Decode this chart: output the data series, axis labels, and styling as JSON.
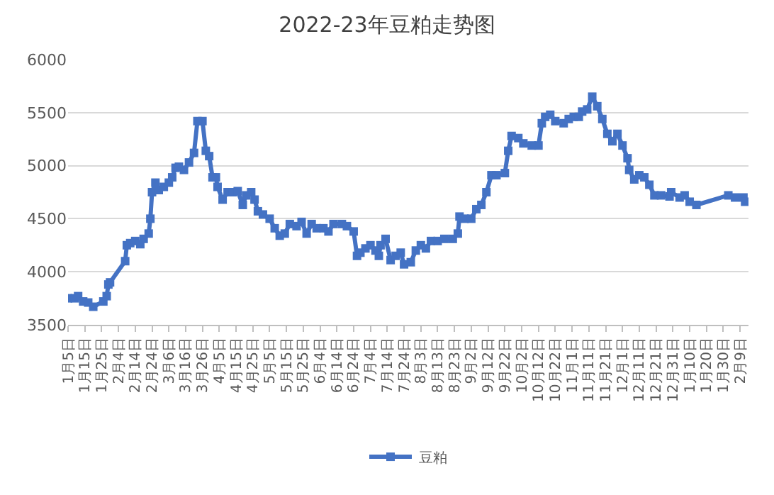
{
  "chart_data": {
    "type": "line",
    "title": "2022-23年豆粕走势图",
    "x": [
      "2022-01-05",
      "2022-01-09",
      "2022-01-11",
      "2022-01-14",
      "2022-01-17",
      "2022-01-20",
      "2022-01-26",
      "2022-01-28",
      "2022-01-29",
      "2022-01-30",
      "2022-02-08",
      "2022-02-09",
      "2022-02-11",
      "2022-02-14",
      "2022-02-17",
      "2022-02-19",
      "2022-02-22",
      "2022-02-23",
      "2022-02-24",
      "2022-02-26",
      "2022-02-28",
      "2022-03-03",
      "2022-03-06",
      "2022-03-08",
      "2022-03-10",
      "2022-03-12",
      "2022-03-15",
      "2022-03-18",
      "2022-03-21",
      "2022-03-23",
      "2022-03-26",
      "2022-03-28",
      "2022-03-30",
      "2022-04-01",
      "2022-04-03",
      "2022-04-04",
      "2022-04-07",
      "2022-04-10",
      "2022-04-13",
      "2022-04-16",
      "2022-04-19",
      "2022-04-21",
      "2022-04-24",
      "2022-04-26",
      "2022-04-28",
      "2022-05-01",
      "2022-05-05",
      "2022-05-08",
      "2022-05-11",
      "2022-05-14",
      "2022-05-17",
      "2022-05-21",
      "2022-05-24",
      "2022-05-27",
      "2022-05-30",
      "2022-06-02",
      "2022-06-06",
      "2022-06-09",
      "2022-06-12",
      "2022-06-17",
      "2022-06-20",
      "2022-06-24",
      "2022-06-26",
      "2022-06-28",
      "2022-07-01",
      "2022-07-04",
      "2022-07-07",
      "2022-07-09",
      "2022-07-10",
      "2022-07-13",
      "2022-07-16",
      "2022-07-19",
      "2022-07-22",
      "2022-07-24",
      "2022-07-28",
      "2022-07-31",
      "2022-08-03",
      "2022-08-06",
      "2022-08-09",
      "2022-08-13",
      "2022-08-17",
      "2022-08-22",
      "2022-08-25",
      "2022-08-26",
      "2022-08-29",
      "2022-09-02",
      "2022-09-05",
      "2022-09-08",
      "2022-09-11",
      "2022-09-14",
      "2022-09-17",
      "2022-09-22",
      "2022-09-24",
      "2022-09-26",
      "2022-09-30",
      "2022-10-03",
      "2022-10-08",
      "2022-10-12",
      "2022-10-14",
      "2022-10-16",
      "2022-10-19",
      "2022-10-22",
      "2022-10-27",
      "2022-10-30",
      "2022-11-02",
      "2022-11-05",
      "2022-11-07",
      "2022-11-10",
      "2022-11-13",
      "2022-11-16",
      "2022-11-19",
      "2022-11-22",
      "2022-11-25",
      "2022-11-28",
      "2022-12-01",
      "2022-12-04",
      "2022-12-05",
      "2022-12-08",
      "2022-12-11",
      "2022-12-14",
      "2022-12-17",
      "2022-12-20",
      "2022-12-24",
      "2022-12-29",
      "2022-12-30",
      "2023-01-04",
      "2023-01-07",
      "2023-01-10",
      "2023-01-14",
      "2023-02-02",
      "2023-02-06",
      "2023-02-11",
      "2023-02-12"
    ],
    "series": [
      {
        "name": "豆粕",
        "color": "#4472c4",
        "values": [
          3750,
          3750,
          3770,
          3720,
          3710,
          3670,
          3720,
          3770,
          3880,
          3900,
          4100,
          4250,
          4270,
          4290,
          4260,
          4310,
          4360,
          4500,
          4750,
          4840,
          4770,
          4800,
          4840,
          4890,
          4980,
          4990,
          4960,
          5030,
          5120,
          5420,
          5420,
          5140,
          5090,
          4890,
          4890,
          4800,
          4680,
          4750,
          4750,
          4760,
          4630,
          4720,
          4750,
          4680,
          4570,
          4540,
          4500,
          4410,
          4340,
          4360,
          4450,
          4430,
          4470,
          4360,
          4450,
          4410,
          4410,
          4380,
          4450,
          4450,
          4430,
          4380,
          4150,
          4180,
          4220,
          4250,
          4200,
          4150,
          4250,
          4310,
          4110,
          4150,
          4180,
          4070,
          4090,
          4200,
          4250,
          4220,
          4290,
          4290,
          4310,
          4310,
          4360,
          4520,
          4500,
          4500,
          4590,
          4630,
          4750,
          4910,
          4910,
          4930,
          5140,
          5280,
          5260,
          5210,
          5190,
          5190,
          5400,
          5460,
          5480,
          5420,
          5400,
          5440,
          5460,
          5460,
          5510,
          5530,
          5650,
          5560,
          5440,
          5300,
          5230,
          5300,
          5190,
          5070,
          4960,
          4870,
          4910,
          4890,
          4820,
          4720,
          4720,
          4710,
          4750,
          4700,
          4720,
          4660,
          4630,
          4720,
          4700,
          4700,
          4660
        ]
      }
    ],
    "xlim": [
      "2022-01-05",
      "2023-02-14"
    ],
    "xticks": [
      {
        "value": "2022-01-05",
        "label": "1月5日"
      },
      {
        "value": "2022-01-15",
        "label": "1月15日"
      },
      {
        "value": "2022-01-25",
        "label": "1月25日"
      },
      {
        "value": "2022-02-04",
        "label": "2月4日"
      },
      {
        "value": "2022-02-14",
        "label": "2月14日"
      },
      {
        "value": "2022-02-24",
        "label": "2月24日"
      },
      {
        "value": "2022-03-06",
        "label": "3月6日"
      },
      {
        "value": "2022-03-16",
        "label": "3月16日"
      },
      {
        "value": "2022-03-26",
        "label": "3月26日"
      },
      {
        "value": "2022-04-05",
        "label": "4月5日"
      },
      {
        "value": "2022-04-15",
        "label": "4月15日"
      },
      {
        "value": "2022-04-25",
        "label": "4月25日"
      },
      {
        "value": "2022-05-05",
        "label": "5月5日"
      },
      {
        "value": "2022-05-15",
        "label": "5月15日"
      },
      {
        "value": "2022-05-25",
        "label": "5月25日"
      },
      {
        "value": "2022-06-04",
        "label": "6月4日"
      },
      {
        "value": "2022-06-14",
        "label": "6月14日"
      },
      {
        "value": "2022-06-24",
        "label": "6月24日"
      },
      {
        "value": "2022-07-04",
        "label": "7月4日"
      },
      {
        "value": "2022-07-14",
        "label": "7月14日"
      },
      {
        "value": "2022-07-24",
        "label": "7月24日"
      },
      {
        "value": "2022-08-03",
        "label": "8月3日"
      },
      {
        "value": "2022-08-13",
        "label": "8月13日"
      },
      {
        "value": "2022-08-23",
        "label": "8月23日"
      },
      {
        "value": "2022-09-02",
        "label": "9月2日"
      },
      {
        "value": "2022-09-12",
        "label": "9月12日"
      },
      {
        "value": "2022-09-22",
        "label": "9月22日"
      },
      {
        "value": "2022-10-02",
        "label": "10月2日"
      },
      {
        "value": "2022-10-12",
        "label": "10月12日"
      },
      {
        "value": "2022-10-22",
        "label": "10月22日"
      },
      {
        "value": "2022-11-01",
        "label": "11月1日"
      },
      {
        "value": "2022-11-11",
        "label": "11月11日"
      },
      {
        "value": "2022-11-21",
        "label": "11月21日"
      },
      {
        "value": "2022-12-01",
        "label": "12月1日"
      },
      {
        "value": "2022-12-11",
        "label": "12月11日"
      },
      {
        "value": "2022-12-21",
        "label": "12月21日"
      },
      {
        "value": "2022-12-31",
        "label": "12月31日"
      },
      {
        "value": "2023-01-10",
        "label": "1月10日"
      },
      {
        "value": "2023-01-20",
        "label": "1月20日"
      },
      {
        "value": "2023-01-30",
        "label": "1月30日"
      },
      {
        "value": "2023-02-09",
        "label": "2月9日"
      }
    ],
    "ylim": [
      3500,
      6000
    ],
    "yticks": [
      3500,
      4000,
      4500,
      5000,
      5500,
      6000
    ],
    "grid": "y",
    "legend": "bottom",
    "marker": "square",
    "line_style": "solid"
  }
}
